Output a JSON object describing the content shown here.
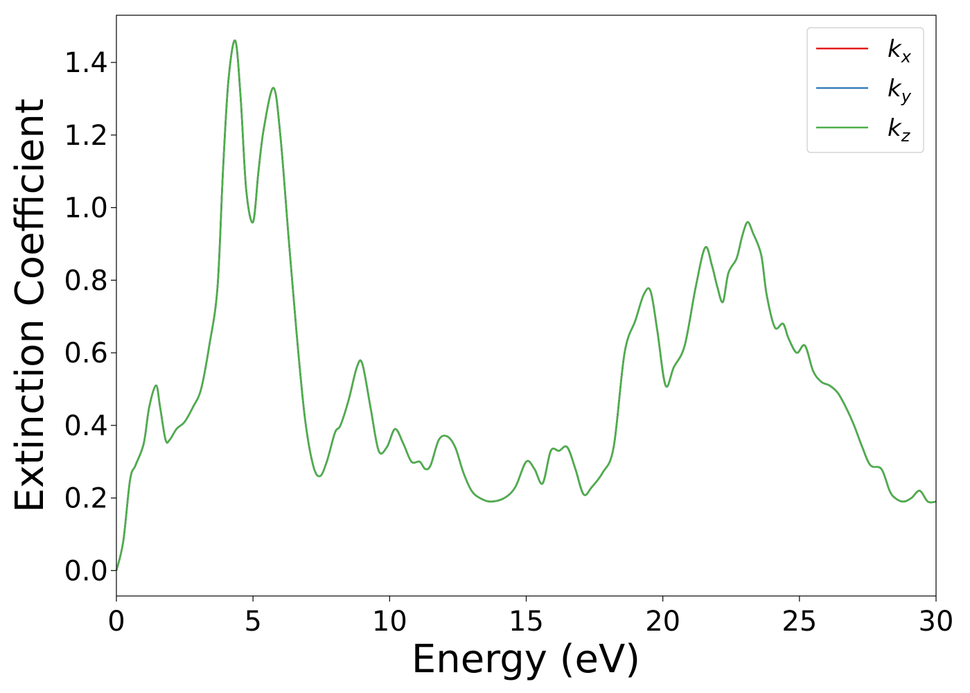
{
  "chart_data": {
    "type": "line",
    "title": "",
    "xlabel": "Energy (eV)",
    "ylabel": "Extinction Coefficient",
    "xlim": [
      0,
      30
    ],
    "ylim": [
      -0.07,
      1.53
    ],
    "xticks": [
      0,
      5,
      10,
      15,
      20,
      25,
      30
    ],
    "xtick_labels": [
      "0",
      "5",
      "10",
      "15",
      "20",
      "25",
      "30"
    ],
    "yticks": [
      0.0,
      0.2,
      0.4,
      0.6,
      0.8,
      1.0,
      1.2,
      1.4
    ],
    "ytick_labels": [
      "0.0",
      "0.2",
      "0.4",
      "0.6",
      "0.8",
      "1.0",
      "1.2",
      "1.4"
    ],
    "grid": false,
    "legend_position": "top-right",
    "series": [
      {
        "name": "kx",
        "label_base": "k",
        "label_sub": "x",
        "color": "#e41a1c",
        "x": [
          0,
          0.25,
          0.5,
          0.7,
          1.0,
          1.2,
          1.45,
          1.6,
          1.8,
          1.95,
          2.2,
          2.5,
          2.8,
          3.1,
          3.4,
          3.7,
          3.9,
          4.1,
          4.35,
          4.55,
          4.75,
          5.0,
          5.2,
          5.4,
          5.75,
          6.0,
          6.3,
          6.6,
          6.9,
          7.2,
          7.45,
          7.7,
          8.0,
          8.2,
          8.5,
          8.8,
          9.0,
          9.3,
          9.6,
          9.9,
          10.2,
          10.5,
          10.8,
          11.1,
          11.3,
          11.5,
          11.8,
          12.1,
          12.4,
          12.7,
          13.0,
          13.3,
          13.7,
          14.2,
          14.6,
          15.0,
          15.3,
          15.6,
          15.9,
          16.2,
          16.5,
          16.8,
          17.1,
          17.4,
          17.8,
          18.2,
          18.6,
          19.0,
          19.3,
          19.55,
          19.8,
          20.1,
          20.4,
          20.8,
          21.2,
          21.55,
          21.8,
          22.0,
          22.2,
          22.4,
          22.7,
          22.9,
          23.1,
          23.3,
          23.6,
          23.8,
          24.1,
          24.4,
          24.6,
          24.9,
          25.2,
          25.5,
          25.8,
          26.1,
          26.4,
          26.7,
          27.0,
          27.3,
          27.6,
          28.0,
          28.3,
          28.5,
          28.8,
          29.1,
          29.4,
          29.7,
          30.0
        ],
        "y": [
          0.0,
          0.08,
          0.25,
          0.29,
          0.35,
          0.45,
          0.51,
          0.45,
          0.36,
          0.36,
          0.39,
          0.41,
          0.45,
          0.5,
          0.62,
          0.78,
          1.1,
          1.35,
          1.46,
          1.3,
          1.05,
          0.96,
          1.1,
          1.22,
          1.33,
          1.2,
          0.92,
          0.65,
          0.42,
          0.29,
          0.26,
          0.3,
          0.38,
          0.4,
          0.47,
          0.56,
          0.57,
          0.45,
          0.33,
          0.34,
          0.39,
          0.35,
          0.3,
          0.3,
          0.28,
          0.29,
          0.36,
          0.37,
          0.34,
          0.27,
          0.22,
          0.2,
          0.19,
          0.2,
          0.23,
          0.3,
          0.28,
          0.24,
          0.33,
          0.33,
          0.34,
          0.28,
          0.21,
          0.23,
          0.27,
          0.34,
          0.6,
          0.69,
          0.76,
          0.77,
          0.66,
          0.51,
          0.56,
          0.62,
          0.78,
          0.89,
          0.84,
          0.78,
          0.74,
          0.82,
          0.86,
          0.92,
          0.96,
          0.93,
          0.87,
          0.76,
          0.67,
          0.68,
          0.64,
          0.6,
          0.62,
          0.55,
          0.52,
          0.51,
          0.49,
          0.45,
          0.4,
          0.34,
          0.29,
          0.28,
          0.22,
          0.2,
          0.19,
          0.2,
          0.22,
          0.19,
          0.19
        ]
      },
      {
        "name": "ky",
        "label_base": "k",
        "label_sub": "y",
        "color": "#377eb8",
        "x": [
          0,
          0.25,
          0.5,
          0.7,
          1.0,
          1.2,
          1.45,
          1.6,
          1.8,
          1.95,
          2.2,
          2.5,
          2.8,
          3.1,
          3.4,
          3.7,
          3.9,
          4.1,
          4.35,
          4.55,
          4.75,
          5.0,
          5.2,
          5.4,
          5.75,
          6.0,
          6.3,
          6.6,
          6.9,
          7.2,
          7.45,
          7.7,
          8.0,
          8.2,
          8.5,
          8.8,
          9.0,
          9.3,
          9.6,
          9.9,
          10.2,
          10.5,
          10.8,
          11.1,
          11.3,
          11.5,
          11.8,
          12.1,
          12.4,
          12.7,
          13.0,
          13.3,
          13.7,
          14.2,
          14.6,
          15.0,
          15.3,
          15.6,
          15.9,
          16.2,
          16.5,
          16.8,
          17.1,
          17.4,
          17.8,
          18.2,
          18.6,
          19.0,
          19.3,
          19.55,
          19.8,
          20.1,
          20.4,
          20.8,
          21.2,
          21.55,
          21.8,
          22.0,
          22.2,
          22.4,
          22.7,
          22.9,
          23.1,
          23.3,
          23.6,
          23.8,
          24.1,
          24.4,
          24.6,
          24.9,
          25.2,
          25.5,
          25.8,
          26.1,
          26.4,
          26.7,
          27.0,
          27.3,
          27.6,
          28.0,
          28.3,
          28.5,
          28.8,
          29.1,
          29.4,
          29.7,
          30.0
        ],
        "y": [
          0.0,
          0.08,
          0.25,
          0.29,
          0.35,
          0.45,
          0.51,
          0.45,
          0.36,
          0.36,
          0.39,
          0.41,
          0.45,
          0.5,
          0.62,
          0.78,
          1.1,
          1.35,
          1.46,
          1.3,
          1.05,
          0.96,
          1.1,
          1.22,
          1.33,
          1.2,
          0.92,
          0.65,
          0.42,
          0.29,
          0.26,
          0.3,
          0.38,
          0.4,
          0.47,
          0.56,
          0.57,
          0.45,
          0.33,
          0.34,
          0.39,
          0.35,
          0.3,
          0.3,
          0.28,
          0.29,
          0.36,
          0.37,
          0.34,
          0.27,
          0.22,
          0.2,
          0.19,
          0.2,
          0.23,
          0.3,
          0.28,
          0.24,
          0.33,
          0.33,
          0.34,
          0.28,
          0.21,
          0.23,
          0.27,
          0.34,
          0.6,
          0.69,
          0.76,
          0.77,
          0.66,
          0.51,
          0.56,
          0.62,
          0.78,
          0.89,
          0.84,
          0.78,
          0.74,
          0.82,
          0.86,
          0.92,
          0.96,
          0.93,
          0.87,
          0.76,
          0.67,
          0.68,
          0.64,
          0.6,
          0.62,
          0.55,
          0.52,
          0.51,
          0.49,
          0.45,
          0.4,
          0.34,
          0.29,
          0.28,
          0.22,
          0.2,
          0.19,
          0.2,
          0.22,
          0.19,
          0.19
        ]
      },
      {
        "name": "kz",
        "label_base": "k",
        "label_sub": "z",
        "color": "#4daf4a",
        "x": [
          0,
          0.25,
          0.5,
          0.7,
          1.0,
          1.2,
          1.45,
          1.6,
          1.8,
          1.95,
          2.2,
          2.5,
          2.8,
          3.1,
          3.4,
          3.7,
          3.9,
          4.1,
          4.35,
          4.55,
          4.75,
          5.0,
          5.2,
          5.4,
          5.75,
          6.0,
          6.3,
          6.6,
          6.9,
          7.2,
          7.45,
          7.7,
          8.0,
          8.2,
          8.5,
          8.8,
          9.0,
          9.3,
          9.6,
          9.9,
          10.2,
          10.5,
          10.8,
          11.1,
          11.3,
          11.5,
          11.8,
          12.1,
          12.4,
          12.7,
          13.0,
          13.3,
          13.7,
          14.2,
          14.6,
          15.0,
          15.3,
          15.6,
          15.9,
          16.2,
          16.5,
          16.8,
          17.1,
          17.4,
          17.8,
          18.2,
          18.6,
          19.0,
          19.3,
          19.55,
          19.8,
          20.1,
          20.4,
          20.8,
          21.2,
          21.55,
          21.8,
          22.0,
          22.2,
          22.4,
          22.7,
          22.9,
          23.1,
          23.3,
          23.6,
          23.8,
          24.1,
          24.4,
          24.6,
          24.9,
          25.2,
          25.5,
          25.8,
          26.1,
          26.4,
          26.7,
          27.0,
          27.3,
          27.6,
          28.0,
          28.3,
          28.5,
          28.8,
          29.1,
          29.4,
          29.7,
          30.0
        ],
        "y": [
          0.0,
          0.08,
          0.25,
          0.29,
          0.35,
          0.45,
          0.51,
          0.45,
          0.36,
          0.36,
          0.39,
          0.41,
          0.45,
          0.5,
          0.62,
          0.78,
          1.1,
          1.35,
          1.46,
          1.3,
          1.05,
          0.96,
          1.1,
          1.22,
          1.33,
          1.2,
          0.92,
          0.65,
          0.42,
          0.29,
          0.26,
          0.3,
          0.38,
          0.4,
          0.47,
          0.56,
          0.57,
          0.45,
          0.33,
          0.34,
          0.39,
          0.35,
          0.3,
          0.3,
          0.28,
          0.29,
          0.36,
          0.37,
          0.34,
          0.27,
          0.22,
          0.2,
          0.19,
          0.2,
          0.23,
          0.3,
          0.28,
          0.24,
          0.33,
          0.33,
          0.34,
          0.28,
          0.21,
          0.23,
          0.27,
          0.34,
          0.6,
          0.69,
          0.76,
          0.77,
          0.66,
          0.51,
          0.56,
          0.62,
          0.78,
          0.89,
          0.84,
          0.78,
          0.74,
          0.82,
          0.86,
          0.92,
          0.96,
          0.93,
          0.87,
          0.76,
          0.67,
          0.68,
          0.64,
          0.6,
          0.62,
          0.55,
          0.52,
          0.51,
          0.49,
          0.45,
          0.4,
          0.34,
          0.29,
          0.28,
          0.22,
          0.2,
          0.19,
          0.2,
          0.22,
          0.19,
          0.19
        ]
      }
    ]
  }
}
